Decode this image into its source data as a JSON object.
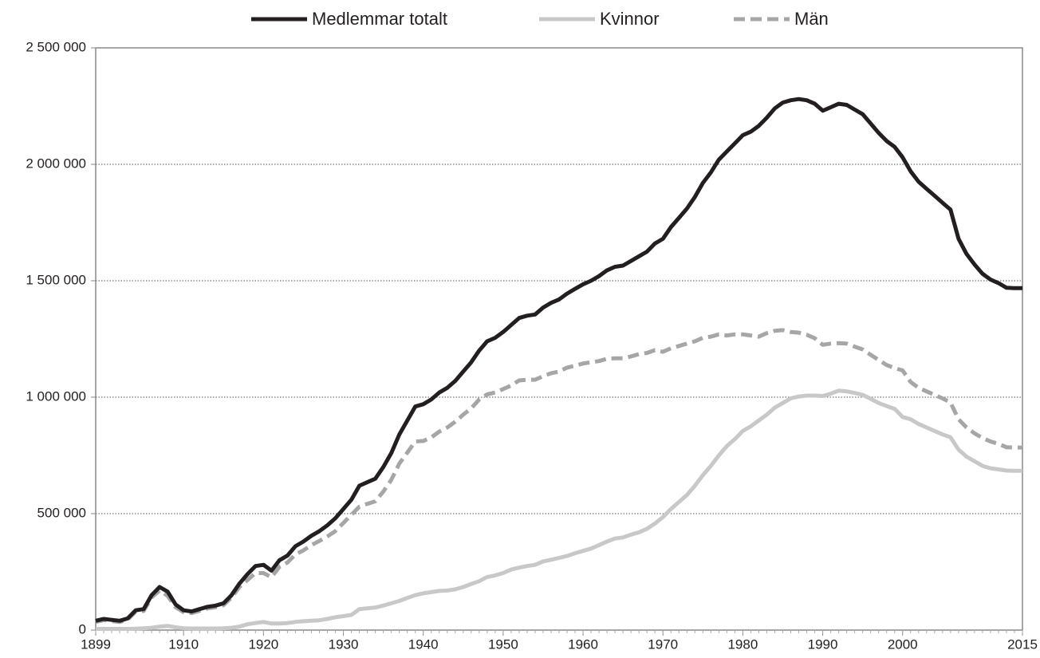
{
  "chart_data": {
    "type": "line",
    "x": [
      1899,
      1900,
      1901,
      1902,
      1903,
      1904,
      1905,
      1906,
      1907,
      1908,
      1909,
      1910,
      1911,
      1912,
      1913,
      1914,
      1915,
      1916,
      1917,
      1918,
      1919,
      1920,
      1921,
      1922,
      1923,
      1924,
      1925,
      1926,
      1927,
      1928,
      1929,
      1930,
      1931,
      1932,
      1933,
      1934,
      1935,
      1936,
      1937,
      1938,
      1939,
      1940,
      1941,
      1942,
      1943,
      1944,
      1945,
      1946,
      1947,
      1948,
      1949,
      1950,
      1951,
      1952,
      1953,
      1954,
      1955,
      1956,
      1957,
      1958,
      1959,
      1960,
      1961,
      1962,
      1963,
      1964,
      1965,
      1966,
      1967,
      1968,
      1969,
      1970,
      1971,
      1972,
      1973,
      1974,
      1975,
      1976,
      1977,
      1978,
      1979,
      1980,
      1981,
      1982,
      1983,
      1984,
      1985,
      1986,
      1987,
      1988,
      1989,
      1990,
      1991,
      1992,
      1993,
      1994,
      1995,
      1996,
      1997,
      1998,
      1999,
      2000,
      2001,
      2002,
      2003,
      2004,
      2005,
      2006,
      2007,
      2008,
      2009,
      2010,
      2011,
      2012,
      2013,
      2014,
      2015
    ],
    "series": [
      {
        "name": "Medlemmar totalt",
        "color": "#231f20",
        "dashed": false,
        "values": [
          40000,
          48000,
          44000,
          40000,
          50000,
          85000,
          90000,
          150000,
          185000,
          165000,
          110000,
          85000,
          80000,
          90000,
          100000,
          105000,
          115000,
          150000,
          200000,
          240000,
          275000,
          280000,
          255000,
          300000,
          320000,
          360000,
          380000,
          405000,
          425000,
          450000,
          480000,
          520000,
          560000,
          620000,
          635000,
          650000,
          700000,
          760000,
          840000,
          900000,
          960000,
          970000,
          990000,
          1020000,
          1040000,
          1070000,
          1110000,
          1150000,
          1200000,
          1240000,
          1255000,
          1280000,
          1310000,
          1340000,
          1350000,
          1355000,
          1385000,
          1405000,
          1420000,
          1445000,
          1465000,
          1485000,
          1500000,
          1520000,
          1545000,
          1560000,
          1565000,
          1585000,
          1605000,
          1625000,
          1660000,
          1680000,
          1730000,
          1770000,
          1810000,
          1860000,
          1920000,
          1965000,
          2020000,
          2055000,
          2090000,
          2125000,
          2140000,
          2165000,
          2200000,
          2240000,
          2265000,
          2275000,
          2280000,
          2275000,
          2260000,
          2230000,
          2245000,
          2260000,
          2255000,
          2235000,
          2215000,
          2175000,
          2135000,
          2100000,
          2075000,
          2030000,
          1970000,
          1925000,
          1895000,
          1865000,
          1835000,
          1805000,
          1680000,
          1615000,
          1570000,
          1530000,
          1505000,
          1490000,
          1470000,
          1468000,
          1468000
        ]
      },
      {
        "name": "Kvinnor",
        "color": "#c8c8c8",
        "dashed": false,
        "values": [
          5000,
          5000,
          5000,
          5000,
          5000,
          6000,
          8000,
          10000,
          15000,
          18000,
          12000,
          8000,
          7000,
          7000,
          7000,
          7000,
          8000,
          10000,
          15000,
          25000,
          30000,
          35000,
          28000,
          28000,
          30000,
          35000,
          38000,
          40000,
          42000,
          48000,
          55000,
          60000,
          65000,
          90000,
          93000,
          97000,
          105000,
          115000,
          125000,
          138000,
          150000,
          158000,
          163000,
          168000,
          170000,
          175000,
          185000,
          198000,
          210000,
          228000,
          235000,
          245000,
          260000,
          268000,
          275000,
          280000,
          295000,
          302000,
          310000,
          318000,
          330000,
          340000,
          350000,
          365000,
          380000,
          393000,
          398000,
          410000,
          420000,
          435000,
          458000,
          485000,
          520000,
          550000,
          580000,
          620000,
          665000,
          705000,
          750000,
          790000,
          820000,
          855000,
          875000,
          900000,
          925000,
          955000,
          975000,
          995000,
          1003000,
          1007000,
          1007000,
          1005000,
          1015000,
          1028000,
          1025000,
          1018000,
          1010000,
          993000,
          975000,
          962000,
          950000,
          915000,
          905000,
          885000,
          870000,
          855000,
          840000,
          828000,
          775000,
          745000,
          725000,
          705000,
          695000,
          690000,
          685000,
          684000,
          684000
        ]
      },
      {
        "name": "Män",
        "color": "#a6a6a6",
        "dashed": true,
        "values": [
          35000,
          43000,
          39000,
          35000,
          45000,
          79000,
          82000,
          140000,
          170000,
          147000,
          98000,
          77000,
          73000,
          83000,
          93000,
          98000,
          107000,
          140000,
          185000,
          215000,
          245000,
          245000,
          227000,
          272000,
          290000,
          325000,
          342000,
          365000,
          383000,
          402000,
          425000,
          460000,
          495000,
          530000,
          542000,
          553000,
          595000,
          645000,
          715000,
          762000,
          810000,
          812000,
          827000,
          852000,
          870000,
          895000,
          925000,
          952000,
          990000,
          1012000,
          1020000,
          1035000,
          1050000,
          1072000,
          1075000,
          1075000,
          1090000,
          1103000,
          1110000,
          1127000,
          1135000,
          1145000,
          1150000,
          1155000,
          1165000,
          1167000,
          1167000,
          1175000,
          1185000,
          1190000,
          1202000,
          1195000,
          1210000,
          1220000,
          1230000,
          1240000,
          1255000,
          1260000,
          1270000,
          1265000,
          1270000,
          1270000,
          1265000,
          1260000,
          1275000,
          1285000,
          1288000,
          1280000,
          1277000,
          1268000,
          1253000,
          1225000,
          1230000,
          1232000,
          1230000,
          1217000,
          1205000,
          1182000,
          1160000,
          1138000,
          1125000,
          1115000,
          1065000,
          1040000,
          1025000,
          1010000,
          995000,
          977000,
          905000,
          870000,
          845000,
          825000,
          810000,
          800000,
          785000,
          784000,
          784000
        ]
      }
    ],
    "xlim": [
      1899,
      2015
    ],
    "xticks": [
      1899,
      1910,
      1920,
      1930,
      1940,
      1950,
      1960,
      1970,
      1980,
      1990,
      2000,
      2015
    ],
    "ylim": [
      0,
      2500000
    ],
    "yticks": [
      0,
      {
        "value": 500000,
        "label": "500 000"
      },
      {
        "value": 1000000,
        "label": "1 000 000"
      },
      {
        "value": 1500000,
        "label": "1 500 000"
      },
      {
        "value": 2000000,
        "label": "2 000 000"
      },
      {
        "value": 2500000,
        "label": "2 500 000"
      }
    ],
    "grid": true,
    "legend": "top"
  }
}
